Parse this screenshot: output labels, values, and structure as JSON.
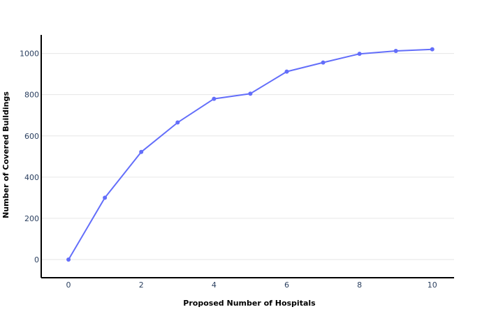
{
  "chart_data": {
    "type": "line",
    "title": "",
    "xlabel": "Proposed Number of Hospitals",
    "ylabel": "Number of Covered Buildings",
    "x": [
      0,
      1,
      2,
      3,
      4,
      5,
      6,
      7,
      8,
      9,
      10
    ],
    "series": [
      {
        "values": [
          0,
          300,
          522,
          665,
          780,
          805,
          912,
          956,
          998,
          1012,
          1020
        ]
      }
    ],
    "xlim": [
      -0.75,
      10.6
    ],
    "ylim": [
      -88,
      1090
    ],
    "xticks": [
      0,
      2,
      4,
      6,
      8,
      10
    ],
    "yticks": [
      0,
      200,
      400,
      600,
      800,
      1000
    ],
    "grid": "horizontal",
    "color": "#636efa"
  }
}
